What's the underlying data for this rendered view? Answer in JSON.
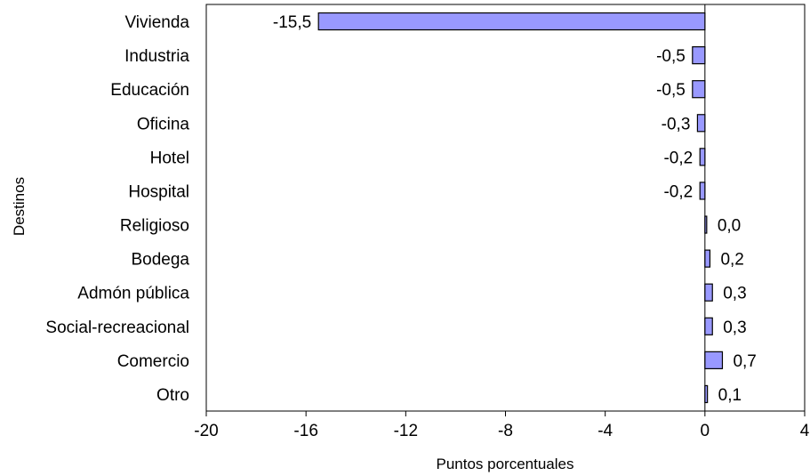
{
  "chart_data": {
    "type": "bar",
    "orientation": "horizontal",
    "categories": [
      "Vivienda",
      "Industria",
      "Educación",
      "Oficina",
      "Hotel",
      "Hospital",
      "Religioso",
      "Bodega",
      "Admón pública",
      "Social-recreacional",
      "Comercio",
      "Otro"
    ],
    "values": [
      -15.5,
      -0.5,
      -0.5,
      -0.3,
      -0.2,
      -0.2,
      0.0,
      0.2,
      0.3,
      0.3,
      0.7,
      0.1
    ],
    "data_labels": [
      "-15,5",
      "-0,5",
      "-0,5",
      "-0,3",
      "-0,2",
      "-0,2",
      "0,0",
      "0,2",
      "0,3",
      "0,3",
      "0,7",
      "0,1"
    ],
    "xlabel": "Puntos porcentuales",
    "ylabel": "Destinos",
    "xlim": [
      -20,
      4
    ],
    "xticks": [
      -20,
      -16,
      -12,
      -8,
      -4,
      0,
      4
    ],
    "xtick_labels": [
      "-20",
      "-16",
      "-12",
      "-8",
      "-4",
      "0",
      "4"
    ],
    "grid": false,
    "legend": "none",
    "bar_color": "#9999ff",
    "bar_edge_color": "#000000"
  }
}
